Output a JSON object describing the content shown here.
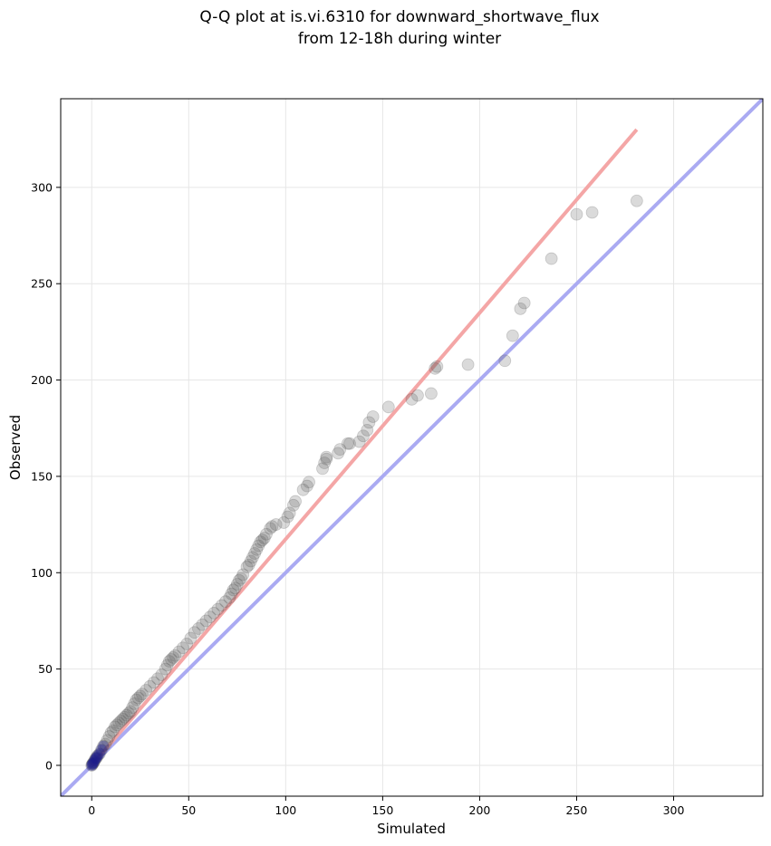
{
  "chart_data": {
    "type": "scatter",
    "title": "Q-Q plot at is.vi.6310 for downward_shortwave_flux",
    "subtitle": "from 12-18h during winter",
    "xlabel": "Simulated",
    "ylabel": "Observed",
    "xlim": [
      -16,
      346
    ],
    "ylim": [
      -16,
      346
    ],
    "xticks": [
      0,
      50,
      100,
      150,
      200,
      250,
      300
    ],
    "yticks": [
      0,
      50,
      100,
      150,
      200,
      250,
      300
    ],
    "x_tick_labels": [
      "0",
      "50",
      "100",
      "150",
      "200",
      "250",
      "300"
    ],
    "y_tick_labels": [
      "0",
      "50",
      "100",
      "150",
      "200",
      "250",
      "300"
    ],
    "grid": true,
    "colors": {
      "points": "#555555",
      "fit_line": "#f4a6a6",
      "identity_line": "#aaaaf2",
      "low_points": "#1a1a8c"
    },
    "lines": [
      {
        "x": [
          -16,
          346
        ],
        "y": [
          -16,
          346
        ],
        "color": "#aaaaf2"
      },
      {
        "x": [
          0,
          281
        ],
        "y": [
          0,
          330
        ],
        "color": "#f4a6a6"
      }
    ],
    "points": [
      {
        "x": 0,
        "y": 0
      },
      {
        "x": 0.3,
        "y": 0.5
      },
      {
        "x": 0.6,
        "y": 1
      },
      {
        "x": 1,
        "y": 1.5
      },
      {
        "x": 1.5,
        "y": 2.5
      },
      {
        "x": 2,
        "y": 3.5
      },
      {
        "x": 2.5,
        "y": 4
      },
      {
        "x": 3,
        "y": 5
      },
      {
        "x": 4,
        "y": 6
      },
      {
        "x": 5,
        "y": 8
      },
      {
        "x": 6,
        "y": 10
      },
      {
        "x": 7,
        "y": 11
      },
      {
        "x": 8,
        "y": 13
      },
      {
        "x": 9,
        "y": 15
      },
      {
        "x": 10,
        "y": 17
      },
      {
        "x": 11,
        "y": 18
      },
      {
        "x": 12,
        "y": 20
      },
      {
        "x": 13,
        "y": 21
      },
      {
        "x": 14,
        "y": 22
      },
      {
        "x": 15,
        "y": 23
      },
      {
        "x": 16,
        "y": 24
      },
      {
        "x": 17,
        "y": 25
      },
      {
        "x": 18,
        "y": 26
      },
      {
        "x": 19,
        "y": 27
      },
      {
        "x": 20,
        "y": 28
      },
      {
        "x": 21,
        "y": 30
      },
      {
        "x": 22,
        "y": 32
      },
      {
        "x": 23,
        "y": 34
      },
      {
        "x": 24,
        "y": 35
      },
      {
        "x": 25,
        "y": 36
      },
      {
        "x": 26,
        "y": 37
      },
      {
        "x": 28,
        "y": 39
      },
      {
        "x": 30,
        "y": 41
      },
      {
        "x": 32,
        "y": 43
      },
      {
        "x": 34,
        "y": 45
      },
      {
        "x": 36,
        "y": 47
      },
      {
        "x": 38,
        "y": 50
      },
      {
        "x": 39,
        "y": 52
      },
      {
        "x": 40,
        "y": 54
      },
      {
        "x": 41,
        "y": 55
      },
      {
        "x": 42,
        "y": 56
      },
      {
        "x": 43,
        "y": 57
      },
      {
        "x": 45,
        "y": 59
      },
      {
        "x": 47,
        "y": 61
      },
      {
        "x": 49,
        "y": 63
      },
      {
        "x": 51,
        "y": 66
      },
      {
        "x": 53,
        "y": 69
      },
      {
        "x": 55,
        "y": 71
      },
      {
        "x": 57,
        "y": 73
      },
      {
        "x": 59,
        "y": 75
      },
      {
        "x": 61,
        "y": 77
      },
      {
        "x": 63,
        "y": 79
      },
      {
        "x": 65,
        "y": 81
      },
      {
        "x": 67,
        "y": 83
      },
      {
        "x": 69,
        "y": 85
      },
      {
        "x": 71,
        "y": 87
      },
      {
        "x": 72,
        "y": 89
      },
      {
        "x": 73,
        "y": 91
      },
      {
        "x": 74,
        "y": 92
      },
      {
        "x": 75,
        "y": 94
      },
      {
        "x": 76,
        "y": 96
      },
      {
        "x": 77,
        "y": 97
      },
      {
        "x": 78,
        "y": 99
      },
      {
        "x": 80,
        "y": 103
      },
      {
        "x": 81,
        "y": 104
      },
      {
        "x": 82,
        "y": 106
      },
      {
        "x": 83,
        "y": 108
      },
      {
        "x": 84,
        "y": 110
      },
      {
        "x": 85,
        "y": 112
      },
      {
        "x": 86,
        "y": 114
      },
      {
        "x": 87,
        "y": 116
      },
      {
        "x": 88,
        "y": 117
      },
      {
        "x": 89,
        "y": 118
      },
      {
        "x": 90,
        "y": 120
      },
      {
        "x": 92,
        "y": 123
      },
      {
        "x": 93,
        "y": 124
      },
      {
        "x": 95,
        "y": 125
      },
      {
        "x": 99,
        "y": 126
      },
      {
        "x": 101,
        "y": 129
      },
      {
        "x": 102,
        "y": 131
      },
      {
        "x": 104,
        "y": 135
      },
      {
        "x": 105,
        "y": 137
      },
      {
        "x": 109,
        "y": 143
      },
      {
        "x": 111,
        "y": 145
      },
      {
        "x": 112,
        "y": 147
      },
      {
        "x": 119,
        "y": 154
      },
      {
        "x": 120,
        "y": 157
      },
      {
        "x": 121,
        "y": 159
      },
      {
        "x": 121,
        "y": 160
      },
      {
        "x": 127,
        "y": 162
      },
      {
        "x": 128,
        "y": 164
      },
      {
        "x": 132,
        "y": 167
      },
      {
        "x": 133,
        "y": 167
      },
      {
        "x": 138,
        "y": 168
      },
      {
        "x": 140,
        "y": 171
      },
      {
        "x": 142,
        "y": 174
      },
      {
        "x": 143,
        "y": 178
      },
      {
        "x": 145,
        "y": 181
      },
      {
        "x": 153,
        "y": 186
      },
      {
        "x": 165,
        "y": 190
      },
      {
        "x": 168,
        "y": 192
      },
      {
        "x": 175,
        "y": 193
      },
      {
        "x": 177,
        "y": 206
      },
      {
        "x": 178,
        "y": 207
      },
      {
        "x": 194,
        "y": 208
      },
      {
        "x": 213,
        "y": 210
      },
      {
        "x": 217,
        "y": 223
      },
      {
        "x": 221,
        "y": 237
      },
      {
        "x": 223,
        "y": 240
      },
      {
        "x": 237,
        "y": 263
      },
      {
        "x": 250,
        "y": 286
      },
      {
        "x": 258,
        "y": 287
      },
      {
        "x": 281,
        "y": 293
      }
    ]
  }
}
